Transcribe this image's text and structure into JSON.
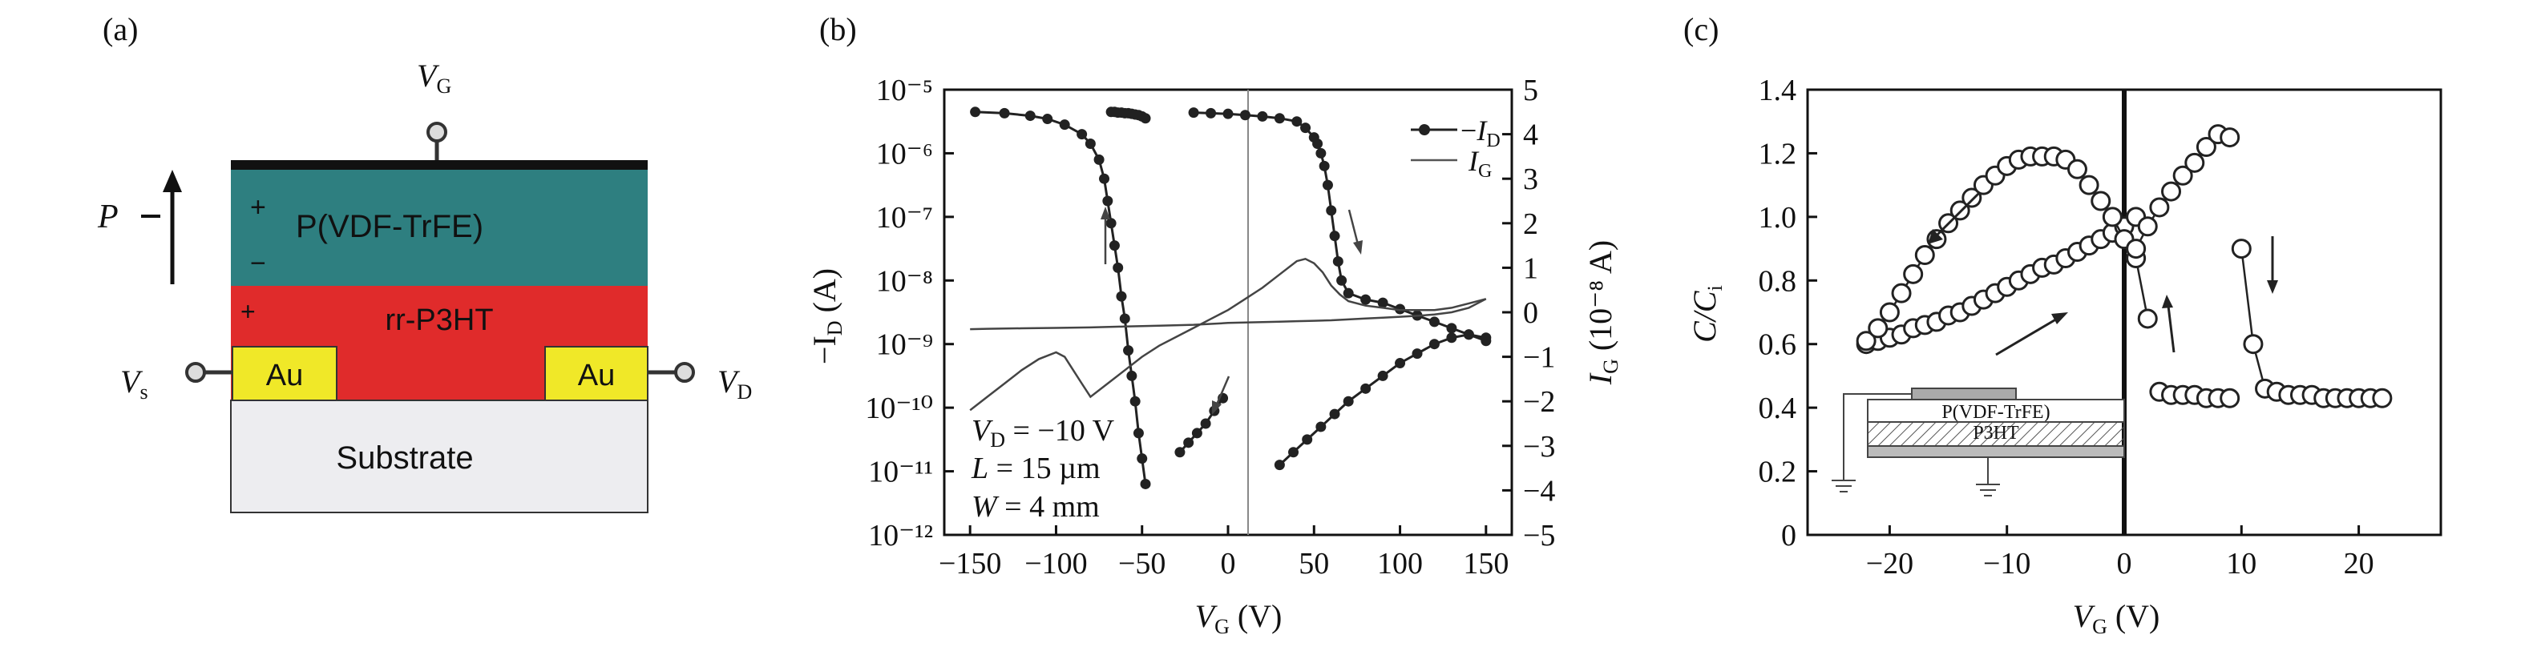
{
  "figure": {
    "panel_labels": [
      "(a)",
      "(b)",
      "(c)"
    ]
  },
  "device": {
    "gate_label": "V",
    "gate_sub": "G",
    "source_label": "V",
    "source_sub": "s",
    "drain_label": "V",
    "drain_sub": "D",
    "polarization_label": "P",
    "ferro_layer": "P(VDF-TrFE)",
    "semi_layer": "rr-P3HT",
    "substrate": "Substrate",
    "electrode_left": "Au",
    "electrode_right": "Au",
    "plus": "+",
    "minus": "−",
    "colors": {
      "ferro": "#2e7f80",
      "semi": "#e02b2b",
      "gold": "#f0e828",
      "substrate": "#ededf0",
      "top": "#111111"
    }
  },
  "chart_data": [
    {
      "type": "line",
      "panel": "(b)",
      "xlabel": "V",
      "xlabel_sub": "G",
      "xlabel_unit": " (V)",
      "ylabel_left": "−I",
      "ylabel_left_sub": "D",
      "ylabel_left_unit": " (A)",
      "ylabel_right": "I",
      "ylabel_right_sub": "G",
      "ylabel_right_unit": " (10⁻⁸ A)",
      "x_ticks": [
        "−150",
        "−100",
        "−50",
        "0",
        "50",
        "100",
        "150"
      ],
      "y_left_ticks": [
        "10⁻⁵",
        "10⁻⁶",
        "10⁻⁷",
        "10⁻⁸",
        "10⁻⁹",
        "10⁻¹⁰",
        "10⁻¹¹",
        "10⁻¹²"
      ],
      "y_right_ticks": [
        "5",
        "4",
        "3",
        "2",
        "1",
        "0",
        "−1",
        "−2",
        "−3",
        "−4",
        "−5"
      ],
      "xlim": [
        -165,
        165
      ],
      "y_left_log_range": [
        -12,
        -5
      ],
      "y_right_range": [
        -5,
        5
      ],
      "annotations": [
        "V_D = −10 V",
        "L = 15 µm",
        "W = 4 mm"
      ],
      "annotation_parts": {
        "vd_var": "V",
        "vd_sub": "D",
        "vd_val": " = −10 V",
        "l_var": "L",
        "l_val": " = 15 µm",
        "w_var": "W",
        "w_val": " = 4 mm"
      },
      "legend": {
        "id_minus": "−",
        "id_var": "I",
        "id_sub": "D",
        "ig_var": "I",
        "ig_sub": "G",
        "placement": "top-right"
      },
      "series": [
        {
          "name": "−I_D",
          "axis": "left-log",
          "marker": "dot",
          "branches": [
            {
              "x": [
                -147,
                -130,
                -115,
                -105,
                -95,
                -85,
                -80,
                -75,
                -72,
                -70,
                -68,
                -66,
                -64,
                -62,
                -60,
                -58,
                -56,
                -54,
                -52,
                -50,
                -48
              ],
              "y": [
                -5.35,
                -5.37,
                -5.41,
                -5.46,
                -5.55,
                -5.7,
                -5.85,
                -6.1,
                -6.4,
                -6.75,
                -7.1,
                -7.45,
                -7.8,
                -8.25,
                -8.6,
                -9.1,
                -9.5,
                -9.9,
                -10.4,
                -10.8,
                -11.2
              ]
            },
            {
              "x": [
                -68,
                -66,
                -64,
                -62,
                -60,
                -58,
                -56,
                -54,
                -52,
                -50,
                -48
              ],
              "y": [
                -5.35,
                -5.35,
                -5.36,
                -5.36,
                -5.37,
                -5.37,
                -5.38,
                -5.39,
                -5.4,
                -5.42,
                -5.45
              ]
            },
            {
              "x": [
                -28,
                -23,
                -18,
                -13,
                -8,
                -3
              ],
              "y": [
                -10.7,
                -10.55,
                -10.4,
                -10.25,
                -10.05,
                -9.85
              ]
            },
            {
              "x": [
                30,
                38,
                46,
                54,
                62,
                70,
                80,
                90,
                100,
                110,
                120,
                130,
                140,
                150
              ],
              "y": [
                -10.9,
                -10.7,
                -10.5,
                -10.3,
                -10.1,
                -9.9,
                -9.7,
                -9.5,
                -9.3,
                -9.15,
                -9.0,
                -8.9,
                -8.85,
                -8.9
              ]
            },
            {
              "x": [
                150,
                140,
                130,
                120,
                110,
                100,
                90,
                80,
                70,
                66,
                64,
                62,
                60,
                58,
                56,
                54,
                52,
                50,
                45,
                40,
                30,
                20,
                10,
                0,
                -10,
                -20
              ],
              "y": [
                -8.95,
                -8.85,
                -8.75,
                -8.65,
                -8.55,
                -8.45,
                -8.35,
                -8.3,
                -8.2,
                -8.0,
                -7.7,
                -7.3,
                -6.9,
                -6.5,
                -6.2,
                -6.0,
                -5.85,
                -5.75,
                -5.6,
                -5.5,
                -5.45,
                -5.42,
                -5.4,
                -5.38,
                -5.37,
                -5.36
              ]
            }
          ]
        },
        {
          "name": "I_G",
          "axis": "right-linear",
          "marker": "none",
          "branches": [
            {
              "x": [
                -150,
                -140,
                -130,
                -120,
                -110,
                -100,
                -95,
                -90,
                -85,
                -80,
                -70,
                -60,
                -50,
                -40,
                -30,
                -20,
                -10,
                0,
                10,
                20,
                30,
                40,
                45,
                50,
                55,
                60,
                65,
                70,
                80,
                90,
                100,
                110,
                120,
                130,
                140,
                150
              ],
              "y": [
                -2.2,
                -1.9,
                -1.6,
                -1.3,
                -1.05,
                -0.9,
                -1.0,
                -1.3,
                -1.6,
                -1.9,
                -1.6,
                -1.3,
                -1.0,
                -0.75,
                -0.55,
                -0.35,
                -0.15,
                0.05,
                0.3,
                0.55,
                0.85,
                1.15,
                1.2,
                1.1,
                0.9,
                0.6,
                0.4,
                0.25,
                0.15,
                0.1,
                0.05,
                0.05,
                0.05,
                0.1,
                0.2,
                0.3
              ]
            },
            {
              "x": [
                150,
                140,
                130,
                120,
                110,
                100,
                90,
                80,
                70,
                60,
                50,
                40,
                30,
                20,
                10,
                0,
                -10,
                -20,
                -40,
                -60,
                -80,
                -100,
                -120,
                -140,
                -150
              ],
              "y": [
                0.3,
                0.1,
                0.0,
                -0.05,
                -0.08,
                -0.1,
                -0.12,
                -0.14,
                -0.16,
                -0.18,
                -0.19,
                -0.2,
                -0.21,
                -0.22,
                -0.23,
                -0.24,
                -0.26,
                -0.28,
                -0.3,
                -0.32,
                -0.34,
                -0.35,
                -0.36,
                -0.37,
                -0.38
              ]
            }
          ]
        }
      ]
    },
    {
      "type": "scatter",
      "panel": "(c)",
      "xlabel": "V",
      "xlabel_sub": "G",
      "xlabel_unit": " (V)",
      "ylabel": "C/C",
      "ylabel_sub": "i",
      "x_ticks": [
        "−20",
        "−10",
        "0",
        "10",
        "20"
      ],
      "x_tick_values": [
        -20,
        -10,
        0,
        10,
        20
      ],
      "y_ticks": [
        "0",
        "0.2",
        "0.4",
        "0.6",
        "0.8",
        "1.0",
        "1.2",
        "1.4"
      ],
      "y_tick_values": [
        0,
        0.2,
        0.4,
        0.6,
        0.8,
        1.0,
        1.2,
        1.4
      ],
      "xlim": [
        -27,
        27
      ],
      "ylim": [
        0,
        1.4
      ],
      "inset": {
        "top_layer": "P(VDF-TrFE)",
        "bottom_layer": "P3HT"
      },
      "series": [
        {
          "marker": "open-circle",
          "branches": [
            {
              "x": [
                -22,
                -21,
                -20,
                -19,
                -18,
                -17,
                -16,
                -15,
                -14,
                -13,
                -12,
                -11,
                -10,
                -9,
                -8,
                -7,
                -6,
                -5,
                -4,
                -3,
                -2,
                -1,
                0,
                1
              ],
              "y": [
                0.6,
                0.61,
                0.62,
                0.63,
                0.65,
                0.66,
                0.67,
                0.69,
                0.7,
                0.72,
                0.74,
                0.76,
                0.78,
                0.8,
                0.82,
                0.84,
                0.85,
                0.87,
                0.89,
                0.91,
                0.93,
                0.95,
                0.97,
                1.0
              ]
            },
            {
              "x": [
                -22,
                -21,
                -20,
                -19,
                -18,
                -17,
                -16,
                -15,
                -14,
                -13,
                -12,
                -11,
                -10,
                -9,
                -8,
                -7,
                -6,
                -5,
                -4,
                -3,
                -2,
                -1,
                0,
                1,
                2
              ],
              "y": [
                0.61,
                0.65,
                0.7,
                0.76,
                0.82,
                0.88,
                0.93,
                0.98,
                1.02,
                1.06,
                1.1,
                1.13,
                1.16,
                1.18,
                1.19,
                1.19,
                1.19,
                1.18,
                1.15,
                1.1,
                1.05,
                1.0,
                0.93,
                0.87,
                0.68
              ]
            },
            {
              "x": [
                1,
                2,
                3,
                4,
                5,
                6,
                7,
                8,
                9
              ],
              "y": [
                0.9,
                0.97,
                1.03,
                1.08,
                1.13,
                1.17,
                1.22,
                1.26,
                1.25
              ]
            },
            {
              "x": [
                10,
                11,
                12,
                13,
                14,
                15,
                16,
                17,
                18,
                19,
                20,
                21,
                22
              ],
              "y": [
                0.9,
                0.6,
                0.46,
                0.45,
                0.44,
                0.44,
                0.44,
                0.43,
                0.43,
                0.43,
                0.43,
                0.43,
                0.43
              ]
            },
            {
              "x": [
                3,
                4,
                5,
                6,
                7,
                8,
                9
              ],
              "y": [
                0.45,
                0.44,
                0.44,
                0.44,
                0.43,
                0.43,
                0.43
              ]
            }
          ]
        }
      ]
    }
  ]
}
